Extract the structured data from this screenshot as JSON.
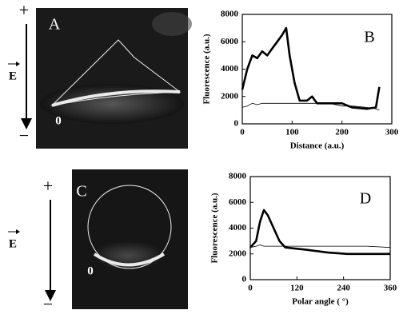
{
  "images": [
    {
      "label": "A",
      "origin": "0",
      "plus": "+",
      "minus": "−",
      "field": "E"
    },
    {
      "label": "C",
      "origin": "0",
      "plus": "+",
      "minus": "−",
      "field": "E"
    }
  ],
  "chart_data": [
    {
      "type": "line",
      "annotation": "B",
      "xlabel": "Distance (a.u.)",
      "ylabel": "Fluorescence (a.u.)",
      "x": [
        0,
        10,
        20,
        30,
        40,
        50,
        60,
        70,
        80,
        88,
        95,
        105,
        115,
        130,
        140,
        150,
        175,
        200,
        220,
        250,
        268,
        275
      ],
      "series": [
        {
          "color": "#000000",
          "values": [
            2500,
            4000,
            5000,
            4800,
            5300,
            5000,
            5500,
            6000,
            6500,
            7000,
            5000,
            3000,
            1700,
            1700,
            2000,
            1500,
            1500,
            1500,
            1200,
            1100,
            1200,
            2700
          ]
        },
        {
          "color": "#000000",
          "values": [
            1200,
            1300,
            1500,
            1400,
            1500,
            1500,
            1500,
            1500,
            1500,
            1500,
            1500,
            1500,
            1500,
            1500,
            1500,
            1500,
            1500,
            1300,
            1300,
            1200,
            1100,
            1000
          ]
        }
      ],
      "xlim": [
        0,
        300
      ],
      "xticks": [
        0,
        100,
        200,
        300
      ],
      "ylim": [
        0,
        8000
      ],
      "yticks": [
        0,
        2000,
        4000,
        6000,
        8000
      ]
    },
    {
      "type": "line",
      "annotation": "D",
      "xlabel": "Polar angle ( °)",
      "ylabel": "Fluorescence (a.u.)",
      "x": [
        0,
        15,
        25,
        35,
        45,
        60,
        75,
        90,
        120,
        150,
        200,
        250,
        300,
        360
      ],
      "series": [
        {
          "color": "#000000",
          "values": [
            2500,
            3000,
            4500,
            5400,
            5000,
            4000,
            3000,
            2500,
            2400,
            2300,
            2100,
            2000,
            2000,
            2000
          ]
        },
        {
          "color": "#000000",
          "values": [
            2500,
            2600,
            2700,
            2600,
            2600,
            2600,
            2600,
            2600,
            2600,
            2600,
            2600,
            2600,
            2600,
            2500
          ]
        }
      ],
      "xlim": [
        0,
        360
      ],
      "xticks": [
        0,
        120,
        240,
        360
      ],
      "ylim": [
        0,
        8000
      ],
      "yticks": [
        0,
        2000,
        4000,
        6000,
        8000
      ]
    }
  ]
}
